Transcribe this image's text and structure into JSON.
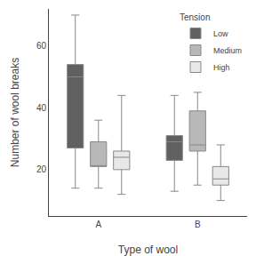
{
  "chart_data": {
    "type": "box",
    "xlabel": "Type of wool",
    "ylabel": "Number of wool breaks",
    "legend_title": "Tension",
    "categories": [
      "A",
      "B"
    ],
    "series": [
      {
        "name": "Low",
        "color": "#606060",
        "values": [
          {
            "whislo": 14,
            "q1": 27,
            "med": 50,
            "q3": 54,
            "whishi": 70
          },
          {
            "whislo": 13,
            "q1": 23,
            "med": 29,
            "q3": 31,
            "whishi": 44
          }
        ]
      },
      {
        "name": "Medium",
        "color": "#b8b8b8",
        "values": [
          {
            "whislo": 14,
            "q1": 21,
            "med": 21,
            "q3": 29,
            "whishi": 36
          },
          {
            "whislo": 15,
            "q1": 26,
            "med": 28,
            "q3": 39,
            "whishi": 45
          }
        ]
      },
      {
        "name": "High",
        "color": "#e8e8e8",
        "values": [
          {
            "whislo": 12,
            "q1": 20,
            "med": 24,
            "q3": 26,
            "whishi": 44
          },
          {
            "whislo": 10,
            "q1": 15,
            "med": 17,
            "q3": 21,
            "whishi": 28
          }
        ]
      }
    ],
    "ylim": [
      5,
      72
    ],
    "yticks": [
      20,
      40,
      60
    ],
    "grid": false,
    "legend": "upper right"
  }
}
